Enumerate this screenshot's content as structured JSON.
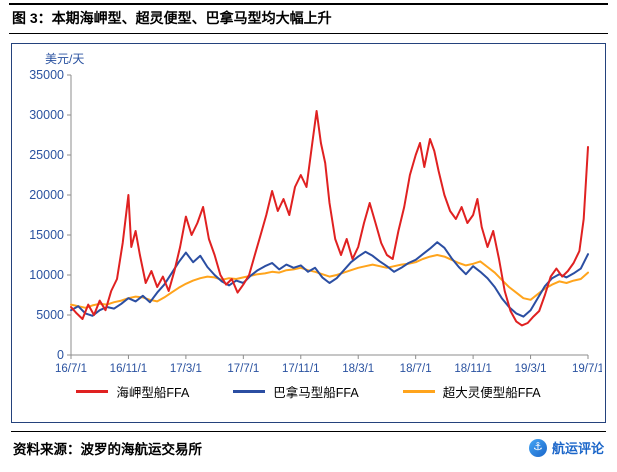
{
  "title": "图 3：本期海岬型、超灵便型、巴拿马型均大幅上升",
  "source": "资料来源：波罗的海航运交易所",
  "watermark": {
    "label": "航运评论",
    "icon": "ship-logo",
    "color": "#1B66C9"
  },
  "chart_data": {
    "type": "line",
    "title": "",
    "xlabel": "",
    "ylabel": "美元/天",
    "ylim": [
      0,
      35000
    ],
    "yticks": [
      0,
      5000,
      10000,
      15000,
      20000,
      25000,
      30000,
      35000
    ],
    "xlim": [
      0,
      36
    ],
    "xtick_positions": [
      0,
      4,
      8,
      12,
      16,
      20,
      24,
      28,
      32,
      36
    ],
    "xtick_labels": [
      "16/7/1",
      "16/11/1",
      "17/3/1",
      "17/7/1",
      "17/11/1",
      "18/3/1",
      "18/7/1",
      "18/11/1",
      "19/3/1",
      "19/7/1"
    ],
    "grid": false,
    "legend_position": "bottom",
    "axis_color": "#2A52A0",
    "axis_line_color": "#8C8C8C",
    "series": [
      {
        "name": "海岬型船FFA",
        "color": "#E02121",
        "points": [
          [
            0,
            6000
          ],
          [
            0.4,
            5200
          ],
          [
            0.8,
            4500
          ],
          [
            1.2,
            6300
          ],
          [
            1.6,
            5000
          ],
          [
            2,
            6800
          ],
          [
            2.4,
            5600
          ],
          [
            2.8,
            8000
          ],
          [
            3.2,
            9500
          ],
          [
            3.6,
            14000
          ],
          [
            4,
            20000
          ],
          [
            4.2,
            13500
          ],
          [
            4.5,
            15500
          ],
          [
            4.8,
            12500
          ],
          [
            5.2,
            9000
          ],
          [
            5.6,
            10500
          ],
          [
            6,
            8500
          ],
          [
            6.4,
            9800
          ],
          [
            6.8,
            8000
          ],
          [
            7.2,
            10500
          ],
          [
            7.6,
            13500
          ],
          [
            8,
            17300
          ],
          [
            8.4,
            15000
          ],
          [
            8.8,
            16500
          ],
          [
            9.2,
            18500
          ],
          [
            9.6,
            14500
          ],
          [
            10,
            12500
          ],
          [
            10.4,
            10000
          ],
          [
            10.8,
            8800
          ],
          [
            11.2,
            9500
          ],
          [
            11.6,
            7800
          ],
          [
            12,
            8800
          ],
          [
            12.4,
            10000
          ],
          [
            12.8,
            12500
          ],
          [
            13.2,
            15000
          ],
          [
            13.6,
            17500
          ],
          [
            14,
            20500
          ],
          [
            14.4,
            18000
          ],
          [
            14.8,
            19500
          ],
          [
            15.2,
            17500
          ],
          [
            15.6,
            21000
          ],
          [
            16,
            22500
          ],
          [
            16.4,
            21000
          ],
          [
            16.8,
            26500
          ],
          [
            17.1,
            30500
          ],
          [
            17.4,
            26500
          ],
          [
            17.7,
            24000
          ],
          [
            18,
            19000
          ],
          [
            18.4,
            14500
          ],
          [
            18.8,
            12500
          ],
          [
            19.2,
            14500
          ],
          [
            19.6,
            12000
          ],
          [
            20,
            13500
          ],
          [
            20.4,
            16500
          ],
          [
            20.8,
            19000
          ],
          [
            21.2,
            16500
          ],
          [
            21.6,
            14000
          ],
          [
            22,
            12500
          ],
          [
            22.4,
            12000
          ],
          [
            22.8,
            15500
          ],
          [
            23.2,
            18500
          ],
          [
            23.6,
            22500
          ],
          [
            24,
            25000
          ],
          [
            24.3,
            26500
          ],
          [
            24.6,
            23500
          ],
          [
            25,
            27000
          ],
          [
            25.3,
            25500
          ],
          [
            25.6,
            23000
          ],
          [
            26,
            20000
          ],
          [
            26.4,
            18000
          ],
          [
            26.8,
            17000
          ],
          [
            27.2,
            18500
          ],
          [
            27.6,
            16500
          ],
          [
            28,
            17500
          ],
          [
            28.3,
            19500
          ],
          [
            28.6,
            16000
          ],
          [
            29,
            13500
          ],
          [
            29.4,
            15500
          ],
          [
            29.8,
            12000
          ],
          [
            30.2,
            8000
          ],
          [
            30.6,
            5500
          ],
          [
            31,
            4200
          ],
          [
            31.4,
            3700
          ],
          [
            31.8,
            4000
          ],
          [
            32.2,
            4800
          ],
          [
            32.6,
            5500
          ],
          [
            33,
            7500
          ],
          [
            33.4,
            9800
          ],
          [
            33.8,
            10800
          ],
          [
            34.2,
            9800
          ],
          [
            34.6,
            10500
          ],
          [
            35,
            11500
          ],
          [
            35.4,
            13000
          ],
          [
            35.7,
            17000
          ],
          [
            36,
            26000
          ]
        ]
      },
      {
        "name": "巴拿马型船FFA",
        "color": "#2B4EA2",
        "points": [
          [
            0,
            5600
          ],
          [
            0.5,
            6100
          ],
          [
            1,
            5200
          ],
          [
            1.5,
            4900
          ],
          [
            2,
            5600
          ],
          [
            2.5,
            6000
          ],
          [
            3,
            5800
          ],
          [
            3.5,
            6400
          ],
          [
            4,
            7100
          ],
          [
            4.5,
            6700
          ],
          [
            5,
            7400
          ],
          [
            5.5,
            6600
          ],
          [
            6,
            7800
          ],
          [
            6.5,
            8800
          ],
          [
            7,
            10200
          ],
          [
            7.5,
            11600
          ],
          [
            8,
            12800
          ],
          [
            8.5,
            11600
          ],
          [
            9,
            12400
          ],
          [
            9.5,
            11000
          ],
          [
            10,
            10000
          ],
          [
            10.5,
            9200
          ],
          [
            11,
            8700
          ],
          [
            11.5,
            9300
          ],
          [
            12,
            9000
          ],
          [
            12.5,
            9900
          ],
          [
            13,
            10600
          ],
          [
            13.5,
            11100
          ],
          [
            14,
            11500
          ],
          [
            14.5,
            10700
          ],
          [
            15,
            11300
          ],
          [
            15.5,
            10900
          ],
          [
            16,
            11200
          ],
          [
            16.5,
            10400
          ],
          [
            17,
            10900
          ],
          [
            17.5,
            9700
          ],
          [
            18,
            9000
          ],
          [
            18.5,
            9600
          ],
          [
            19,
            10600
          ],
          [
            19.5,
            11600
          ],
          [
            20,
            12300
          ],
          [
            20.5,
            12900
          ],
          [
            21,
            12400
          ],
          [
            21.5,
            11700
          ],
          [
            22,
            11100
          ],
          [
            22.5,
            10400
          ],
          [
            23,
            10900
          ],
          [
            23.5,
            11500
          ],
          [
            24,
            11900
          ],
          [
            24.5,
            12600
          ],
          [
            25,
            13300
          ],
          [
            25.5,
            14100
          ],
          [
            26,
            13400
          ],
          [
            26.5,
            12100
          ],
          [
            27,
            11000
          ],
          [
            27.5,
            10100
          ],
          [
            28,
            11100
          ],
          [
            28.5,
            10400
          ],
          [
            29,
            9600
          ],
          [
            29.5,
            8500
          ],
          [
            30,
            7100
          ],
          [
            30.5,
            6000
          ],
          [
            31,
            5200
          ],
          [
            31.5,
            4800
          ],
          [
            32,
            5600
          ],
          [
            32.5,
            7100
          ],
          [
            33,
            8600
          ],
          [
            33.5,
            9600
          ],
          [
            34,
            10100
          ],
          [
            34.5,
            9700
          ],
          [
            35,
            10200
          ],
          [
            35.5,
            10800
          ],
          [
            36,
            12600
          ]
        ]
      },
      {
        "name": "超大灵便型船FFA",
        "color": "#FFA41C",
        "points": [
          [
            0,
            6300
          ],
          [
            0.5,
            6100
          ],
          [
            1,
            5900
          ],
          [
            1.5,
            6200
          ],
          [
            2,
            6400
          ],
          [
            2.5,
            6300
          ],
          [
            3,
            6600
          ],
          [
            3.5,
            6800
          ],
          [
            4,
            7100
          ],
          [
            4.5,
            7300
          ],
          [
            5,
            7200
          ],
          [
            5.5,
            6900
          ],
          [
            6,
            6700
          ],
          [
            6.5,
            7200
          ],
          [
            7,
            7800
          ],
          [
            7.5,
            8400
          ],
          [
            8,
            8900
          ],
          [
            8.5,
            9300
          ],
          [
            9,
            9600
          ],
          [
            9.5,
            9800
          ],
          [
            10,
            9700
          ],
          [
            10.5,
            9400
          ],
          [
            11,
            9600
          ],
          [
            11.5,
            9500
          ],
          [
            12,
            9700
          ],
          [
            12.5,
            9900
          ],
          [
            13,
            10100
          ],
          [
            13.5,
            10200
          ],
          [
            14,
            10400
          ],
          [
            14.5,
            10300
          ],
          [
            15,
            10600
          ],
          [
            15.5,
            10700
          ],
          [
            16,
            10900
          ],
          [
            16.5,
            10600
          ],
          [
            17,
            10400
          ],
          [
            17.5,
            10100
          ],
          [
            18,
            9800
          ],
          [
            18.5,
            10000
          ],
          [
            19,
            10300
          ],
          [
            19.5,
            10600
          ],
          [
            20,
            10900
          ],
          [
            20.5,
            11100
          ],
          [
            21,
            11300
          ],
          [
            21.5,
            11100
          ],
          [
            22,
            10900
          ],
          [
            22.5,
            11100
          ],
          [
            23,
            11300
          ],
          [
            23.5,
            11400
          ],
          [
            24,
            11600
          ],
          [
            24.5,
            12000
          ],
          [
            25,
            12300
          ],
          [
            25.5,
            12500
          ],
          [
            26,
            12300
          ],
          [
            26.5,
            11900
          ],
          [
            27,
            11500
          ],
          [
            27.5,
            11200
          ],
          [
            28,
            11400
          ],
          [
            28.5,
            11700
          ],
          [
            29,
            11000
          ],
          [
            29.5,
            10300
          ],
          [
            30,
            9400
          ],
          [
            30.5,
            8500
          ],
          [
            31,
            7800
          ],
          [
            31.5,
            7100
          ],
          [
            32,
            6900
          ],
          [
            32.5,
            7600
          ],
          [
            33,
            8300
          ],
          [
            33.5,
            8800
          ],
          [
            34,
            9200
          ],
          [
            34.5,
            9000
          ],
          [
            35,
            9300
          ],
          [
            35.5,
            9500
          ],
          [
            36,
            10300
          ]
        ]
      }
    ]
  }
}
